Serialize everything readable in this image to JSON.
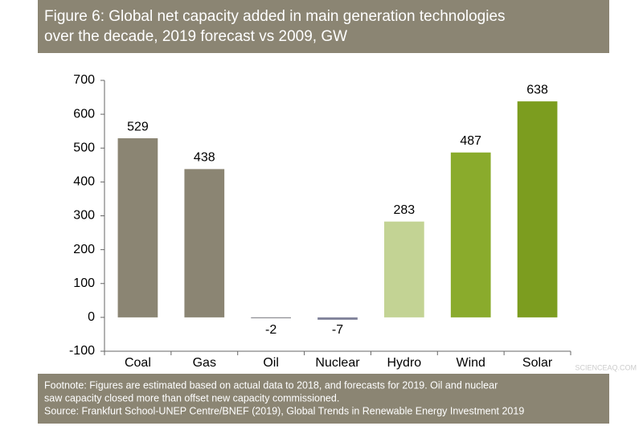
{
  "chart_data": {
    "type": "bar",
    "title": "Figure 6: Global net capacity added in main generation technologies",
    "subtitle": "over the decade, 2019 forecast vs 2009, GW",
    "categories": [
      "Coal",
      "Gas",
      "Oil",
      "Nuclear",
      "Hydro",
      "Wind",
      "Solar"
    ],
    "values": [
      529,
      438,
      -2,
      -7,
      283,
      487,
      638
    ],
    "colors": [
      "#8b8573",
      "#8b8573",
      "#77787f",
      "#80829a",
      "#c3d394",
      "#8aab2c",
      "#7c9d1f"
    ],
    "ylim": [
      -100,
      700
    ],
    "yticks": [
      -100,
      0,
      100,
      200,
      300,
      400,
      500,
      600,
      700
    ],
    "footnote": [
      "Footnote: Figures are estimated based on actual data to 2018, and forecasts for 2019. Oil and nuclear",
      "saw capacity closed more than offset new capacity commissioned."
    ],
    "source": "Source: Frankfurt School-UNEP Centre/BNEF (2019), Global Trends in Renewable Energy Investment 2019",
    "watermark": "SCIENCEAQ.COM"
  }
}
